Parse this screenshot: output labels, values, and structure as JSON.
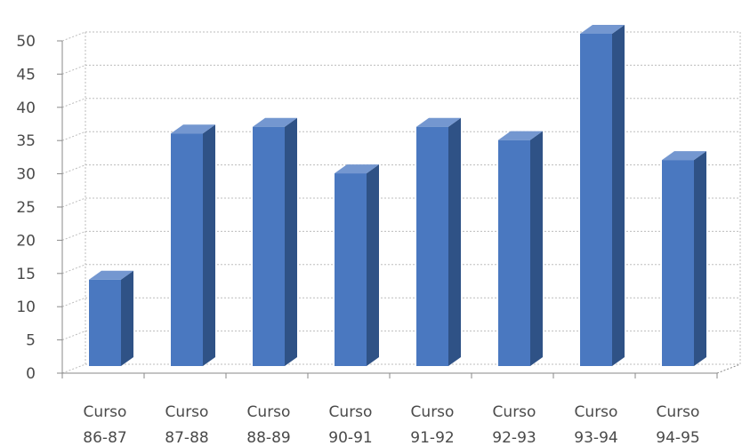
{
  "chart_data": {
    "type": "bar",
    "title": "",
    "xlabel": "",
    "ylabel": "",
    "categories": [
      [
        "Curso",
        "86-87"
      ],
      [
        "Curso",
        "87-88"
      ],
      [
        "Curso",
        "88-89"
      ],
      [
        "Curso",
        "90-91"
      ],
      [
        "Curso",
        "91-92"
      ],
      [
        "Curso",
        "92-93"
      ],
      [
        "Curso",
        "93-94"
      ],
      [
        "Curso",
        "94-95"
      ]
    ],
    "values": [
      13,
      35,
      36,
      29,
      36,
      34,
      50,
      31
    ],
    "ylim": [
      0,
      50
    ],
    "yticks": [
      "0",
      "5",
      "10",
      "15",
      "20",
      "25",
      "30",
      "35",
      "40",
      "45",
      "50"
    ],
    "grid": true,
    "legend": "none",
    "style": "3d-column",
    "colors": {
      "bar_front": "#4a78c0",
      "bar_side": "#2f5286",
      "bar_top": "#7497d0",
      "grid": "#bdbdbd",
      "axis": "#8a8a8a",
      "text": "#4a4a4a"
    }
  }
}
